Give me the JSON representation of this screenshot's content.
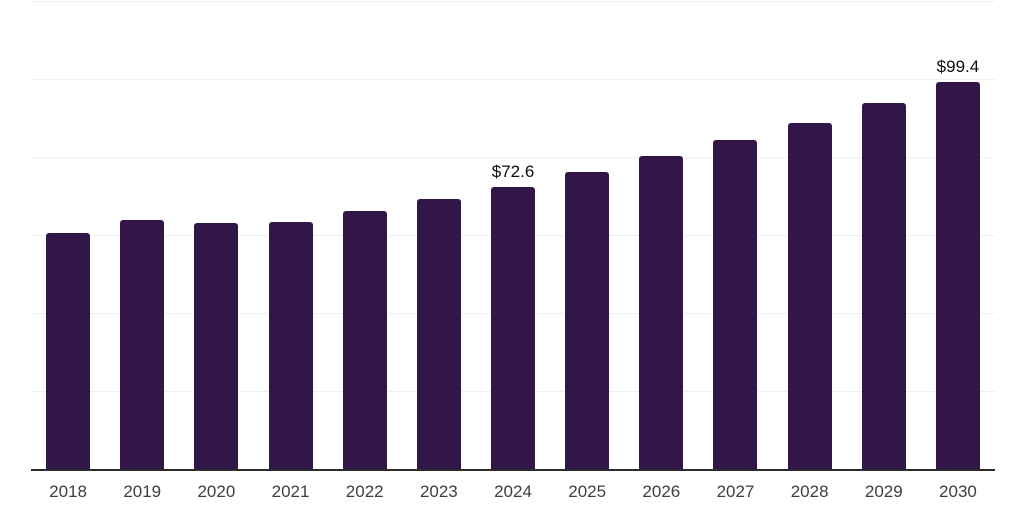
{
  "chart_data": {
    "type": "bar",
    "title": "",
    "xlabel": "",
    "ylabel": "",
    "categories": [
      "2018",
      "2019",
      "2020",
      "2021",
      "2022",
      "2023",
      "2024",
      "2025",
      "2026",
      "2027",
      "2028",
      "2029",
      "2030"
    ],
    "values": [
      60.7,
      64.0,
      63.4,
      63.6,
      66.3,
      69.5,
      72.6,
      76.4,
      80.4,
      84.6,
      89.1,
      94.0,
      99.4
    ],
    "data_labels": [
      "",
      "",
      "",
      "",
      "",
      "",
      "$72.6",
      "",
      "",
      "",
      "",
      "",
      "$99.4"
    ],
    "ylim": [
      0,
      120
    ],
    "gridline_values": [
      20,
      40,
      60,
      80,
      100,
      120
    ],
    "grid": "horizontal-only",
    "legend_position": "none",
    "axis_tick_labels_y": "hidden"
  },
  "colors": {
    "bar_fill": "#321549",
    "gridline": "#efeef0",
    "axis_line": "#2b2b2b",
    "x_tick_label": "#3e3e3e",
    "data_label": "#0f0f0f",
    "background": "#ffffff"
  }
}
